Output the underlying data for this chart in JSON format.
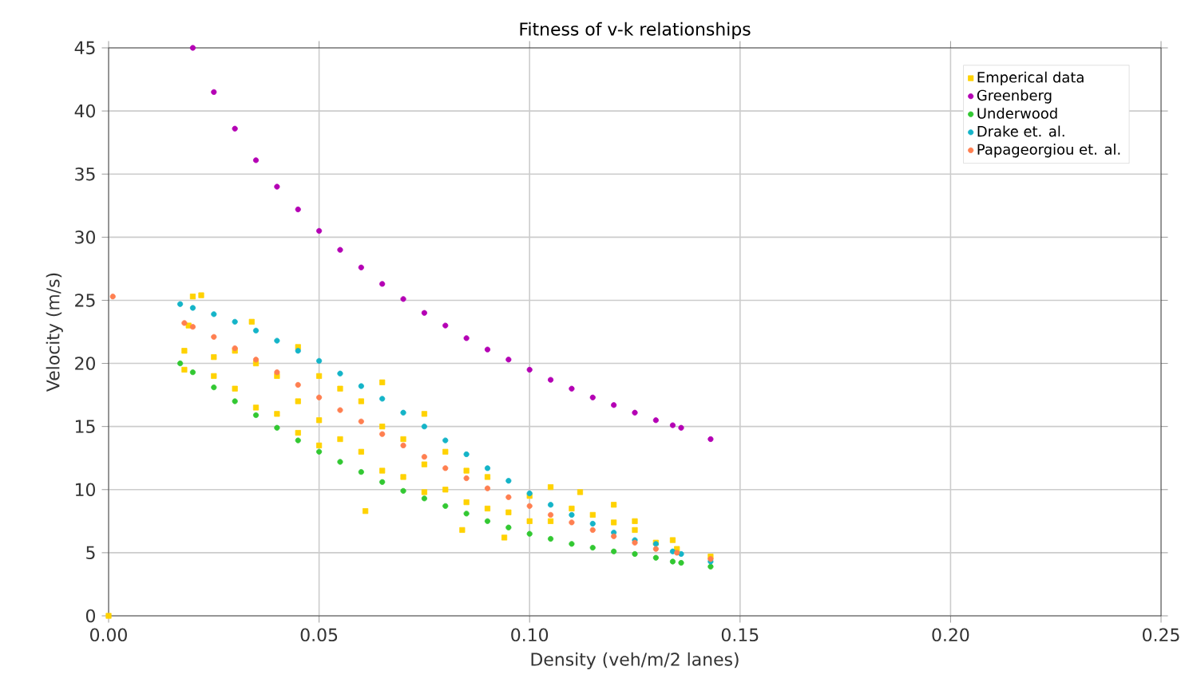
{
  "chart_data": {
    "type": "scatter",
    "title": "Fitness of v-k relationships",
    "xlabel": "Density (veh/m/2 lanes)",
    "ylabel": "Velocity (m/s)",
    "xlim": [
      0,
      0.25
    ],
    "ylim": [
      0,
      45
    ],
    "xticks": [
      {
        "value": 0,
        "label": "0.00"
      },
      {
        "value": 0.05,
        "label": "0.05"
      },
      {
        "value": 0.1,
        "label": "0.10"
      },
      {
        "value": 0.15,
        "label": "0.15"
      },
      {
        "value": 0.2,
        "label": "0.20"
      },
      {
        "value": 0.25,
        "label": "0.25"
      }
    ],
    "yticks": [
      0,
      5,
      10,
      15,
      20,
      25,
      30,
      35,
      40,
      45
    ],
    "grid": true,
    "legend": "top right",
    "marker": "circle",
    "series": [
      {
        "name": "Emperical data",
        "color": "#ffd200",
        "marker": "square",
        "x": [
          0.0,
          0.018,
          0.018,
          0.019,
          0.02,
          0.022,
          0.025,
          0.025,
          0.03,
          0.03,
          0.034,
          0.035,
          0.035,
          0.04,
          0.04,
          0.045,
          0.045,
          0.045,
          0.05,
          0.05,
          0.05,
          0.055,
          0.055,
          0.06,
          0.06,
          0.061,
          0.065,
          0.065,
          0.065,
          0.07,
          0.07,
          0.075,
          0.075,
          0.075,
          0.08,
          0.08,
          0.084,
          0.085,
          0.085,
          0.09,
          0.09,
          0.094,
          0.095,
          0.1,
          0.1,
          0.105,
          0.105,
          0.11,
          0.112,
          0.115,
          0.12,
          0.12,
          0.125,
          0.125,
          0.13,
          0.134,
          0.135,
          0.143
        ],
        "values": [
          0.0,
          21,
          19.5,
          23,
          25.3,
          25.4,
          20.5,
          19,
          21,
          18,
          23.3,
          20,
          16.5,
          19,
          16,
          21.3,
          17,
          14.5,
          19,
          15.5,
          13.5,
          18,
          14,
          17,
          13,
          8.3,
          18.5,
          15,
          11.5,
          14,
          11,
          16,
          12,
          9.8,
          13,
          10,
          6.8,
          11.5,
          9,
          11,
          8.5,
          6.2,
          8.2,
          9.5,
          7.5,
          10.2,
          7.5,
          8.5,
          9.8,
          8.0,
          8.8,
          7.4,
          7.5,
          6.8,
          5.8,
          6.0,
          5.3,
          4.7
        ]
      },
      {
        "name": "Greenberg",
        "color": "#b400b4",
        "x": [
          0.02,
          0.025,
          0.03,
          0.035,
          0.04,
          0.045,
          0.05,
          0.055,
          0.06,
          0.065,
          0.07,
          0.075,
          0.08,
          0.085,
          0.09,
          0.095,
          0.1,
          0.105,
          0.11,
          0.115,
          0.12,
          0.125,
          0.13,
          0.134,
          0.136,
          0.143
        ],
        "values": [
          45.0,
          41.5,
          38.6,
          36.1,
          34.0,
          32.2,
          30.5,
          29.0,
          27.6,
          26.3,
          25.1,
          24.0,
          23.0,
          22.0,
          21.1,
          20.3,
          19.5,
          18.7,
          18.0,
          17.3,
          16.7,
          16.1,
          15.5,
          15.1,
          14.9,
          14.0
        ]
      },
      {
        "name": "Underwood",
        "color": "#32c832",
        "x": [
          0.017,
          0.02,
          0.025,
          0.03,
          0.035,
          0.04,
          0.045,
          0.05,
          0.055,
          0.06,
          0.065,
          0.07,
          0.075,
          0.08,
          0.085,
          0.09,
          0.095,
          0.1,
          0.105,
          0.11,
          0.115,
          0.12,
          0.125,
          0.13,
          0.134,
          0.136,
          0.143
        ],
        "values": [
          20.0,
          19.3,
          18.1,
          17.0,
          15.9,
          14.9,
          13.9,
          13.0,
          12.2,
          11.4,
          10.6,
          9.9,
          9.3,
          8.7,
          8.1,
          7.5,
          7.0,
          6.5,
          6.1,
          5.7,
          5.4,
          5.1,
          4.9,
          4.6,
          4.3,
          4.2,
          3.9
        ]
      },
      {
        "name": "Drake et. al.",
        "color": "#14b4c8",
        "x": [
          0.017,
          0.02,
          0.025,
          0.03,
          0.035,
          0.04,
          0.045,
          0.05,
          0.055,
          0.06,
          0.065,
          0.07,
          0.075,
          0.08,
          0.085,
          0.09,
          0.095,
          0.1,
          0.105,
          0.11,
          0.115,
          0.12,
          0.125,
          0.13,
          0.134,
          0.136,
          0.143
        ],
        "values": [
          24.7,
          24.4,
          23.9,
          23.3,
          22.6,
          21.8,
          21.0,
          20.2,
          19.2,
          18.2,
          17.2,
          16.1,
          15.0,
          13.9,
          12.8,
          11.7,
          10.7,
          9.7,
          8.8,
          8.0,
          7.3,
          6.6,
          6.0,
          5.7,
          5.1,
          4.9,
          4.3
        ]
      },
      {
        "name": "Papageorgiou et. al.",
        "color": "#ff7f50",
        "x": [
          0.001,
          0.018,
          0.02,
          0.025,
          0.03,
          0.035,
          0.04,
          0.045,
          0.05,
          0.055,
          0.06,
          0.065,
          0.07,
          0.075,
          0.08,
          0.085,
          0.09,
          0.095,
          0.1,
          0.105,
          0.11,
          0.115,
          0.12,
          0.125,
          0.13,
          0.135,
          0.143
        ],
        "values": [
          25.3,
          23.2,
          22.9,
          22.1,
          21.2,
          20.3,
          19.3,
          18.3,
          17.3,
          16.3,
          15.4,
          14.4,
          13.5,
          12.6,
          11.7,
          10.9,
          10.1,
          9.4,
          8.7,
          8.0,
          7.4,
          6.8,
          6.3,
          5.8,
          5.3,
          5.0,
          4.5
        ]
      }
    ]
  }
}
